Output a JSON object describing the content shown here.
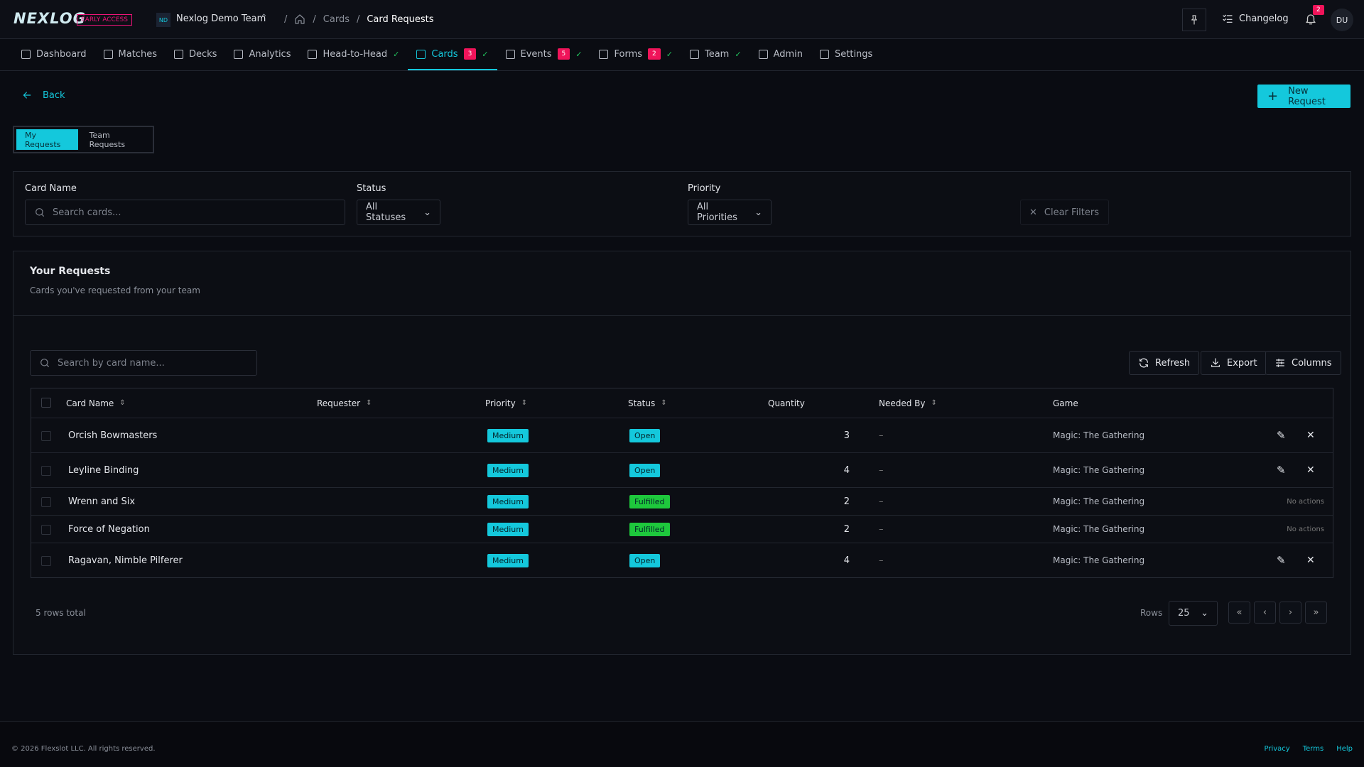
{
  "header": {
    "logo": "NEXLOG",
    "badge": "EARLY ACCESS",
    "team_initials": "ND",
    "team": "Nexlog Demo Team",
    "breadcrumb": [
      "Cards",
      "Card Requests"
    ],
    "changelog": "Changelog",
    "notifications": "2",
    "avatar": "DU"
  },
  "nav": [
    {
      "label": "Dashboard"
    },
    {
      "label": "Matches"
    },
    {
      "label": "Decks"
    },
    {
      "label": "Analytics"
    },
    {
      "label": "Head-to-Head"
    },
    {
      "label": "Cards",
      "badge": "3"
    },
    {
      "label": "Events",
      "badge": "5"
    },
    {
      "label": "Forms",
      "badge": "2"
    },
    {
      "label": "Team"
    },
    {
      "label": "Admin"
    },
    {
      "label": "Settings"
    }
  ],
  "back": "Back",
  "new_request": "New Request",
  "tabs": [
    "My Requests",
    "Team Requests"
  ],
  "filters": {
    "card_name": "Card Name",
    "card_placeholder": "Search cards...",
    "status": "Status",
    "status_value": "All Statuses",
    "priority": "Priority",
    "priority_value": "All Priorities",
    "clear": "Clear Filters"
  },
  "panel": {
    "title": "Your Requests",
    "subtitle": "Cards you've requested from your team"
  },
  "toolbar": {
    "search_placeholder": "Search by card name...",
    "refresh": "Refresh",
    "export": "Export",
    "columns": "Columns"
  },
  "table": {
    "columns": [
      "Card Name",
      "Requester",
      "Priority",
      "Status",
      "Quantity",
      "Needed By",
      "Game"
    ],
    "rows": [
      {
        "name": "Orcish Bowmasters",
        "priority": "Medium",
        "status": "Open",
        "quantity": 3,
        "needed_by": "–",
        "game": "Magic: The Gathering"
      },
      {
        "name": "Leyline Binding",
        "priority": "Medium",
        "status": "Open",
        "quantity": 4,
        "needed_by": "–",
        "game": "Magic: The Gathering"
      },
      {
        "name": "Wrenn and Six",
        "priority": "Medium",
        "status": "Fulfilled",
        "quantity": 2,
        "needed_by": "–",
        "game": "Magic: The Gathering",
        "actions": "No actions"
      },
      {
        "name": "Force of Negation",
        "priority": "Medium",
        "status": "Fulfilled",
        "quantity": 2,
        "needed_by": "–",
        "game": "Magic: The Gathering",
        "actions": "No actions"
      },
      {
        "name": "Ragavan, Nimble Pilferer",
        "priority": "Medium",
        "status": "Open",
        "quantity": 4,
        "needed_by": "–",
        "game": "Magic: The Gathering"
      }
    ]
  },
  "pagination": {
    "total": "5 rows total",
    "rows_label": "Rows",
    "page_size": "25"
  },
  "footer": {
    "copyright": "© 2026 Flexslot LLC. All rights reserved.",
    "links": [
      "Privacy",
      "Terms",
      "Help"
    ]
  }
}
